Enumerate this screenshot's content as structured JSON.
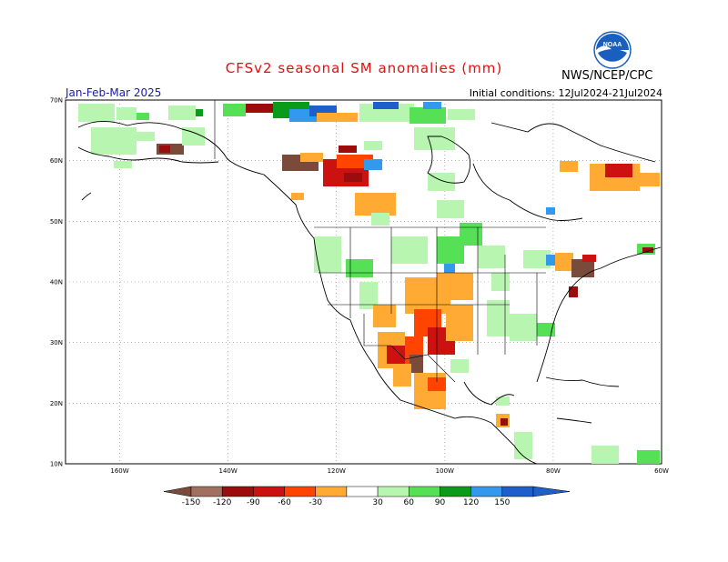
{
  "header": {
    "title": "CFSv2 seasonal SM anomalies (mm)",
    "agency": "NWS/NCEP/CPC",
    "logo_text": "NOAA",
    "period": "Jan-Feb-Mar 2025",
    "initial_conditions": "Initial conditions: 12Jul2024-21Jul2024"
  },
  "axes": {
    "lat_labels": [
      "70N",
      "60N",
      "50N",
      "40N",
      "30N",
      "20N",
      "10N"
    ],
    "lon_labels": [
      "160W",
      "140W",
      "120W",
      "100W",
      "80W",
      "60W"
    ],
    "lat_values": [
      70,
      60,
      50,
      40,
      30,
      20,
      10
    ],
    "lon_values": [
      -160,
      -140,
      -120,
      -100,
      -80,
      -60
    ],
    "lat_range": [
      10,
      70
    ],
    "lon_range": [
      -170,
      -60
    ]
  },
  "legend": {
    "tick_labels": [
      "-150",
      "-120",
      "-90",
      "-60",
      "-30",
      "30",
      "60",
      "90",
      "120",
      "150"
    ],
    "colors": [
      "#7a4a3a",
      "#a07060",
      "#9b0d0d",
      "#cc1111",
      "#ff4400",
      "#ffaa33",
      "#ffffff",
      "#b8f5b0",
      "#55e055",
      "#0b9b1b",
      "#3399ee",
      "#1f5fcc"
    ]
  },
  "colors": {
    "land_white": "#ffffff",
    "coast": "#000000",
    "grid": "#888888"
  }
}
